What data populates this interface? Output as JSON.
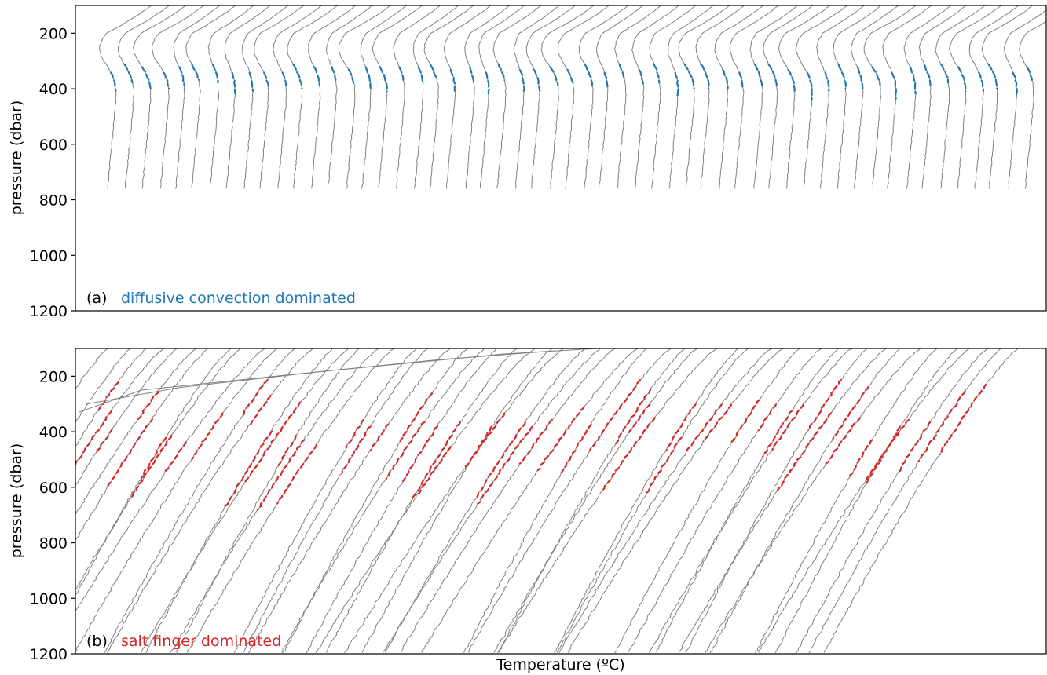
{
  "chart_data": [
    {
      "type": "line",
      "panel_label": "(a)",
      "annotation": "diffusive convection dominated",
      "annotation_color": "#1f77b4",
      "ylabel": "pressure (dbar)",
      "xlabel": "",
      "ylim": [
        1200,
        100
      ],
      "yticks": [
        200,
        400,
        600,
        800,
        1000,
        1200
      ],
      "x_ticks_shown": false,
      "profile_color": "#808080",
      "highlight_color": "#1f77b4",
      "n_profiles": 55,
      "p_top": 100,
      "p_bottom": 760
    },
    {
      "type": "line",
      "panel_label": "(b)",
      "annotation": "salt finger dominated",
      "annotation_color": "#d62728",
      "ylabel": "pressure (dbar)",
      "xlabel": "Temperature (ºC)",
      "ylim": [
        1200,
        100
      ],
      "yticks": [
        200,
        400,
        600,
        800,
        1000,
        1200
      ],
      "x_ticks_shown": false,
      "profile_color": "#808080",
      "highlight_color": "#d62728",
      "n_profiles": 55,
      "p_top": 100,
      "p_bottom": 1200
    }
  ]
}
